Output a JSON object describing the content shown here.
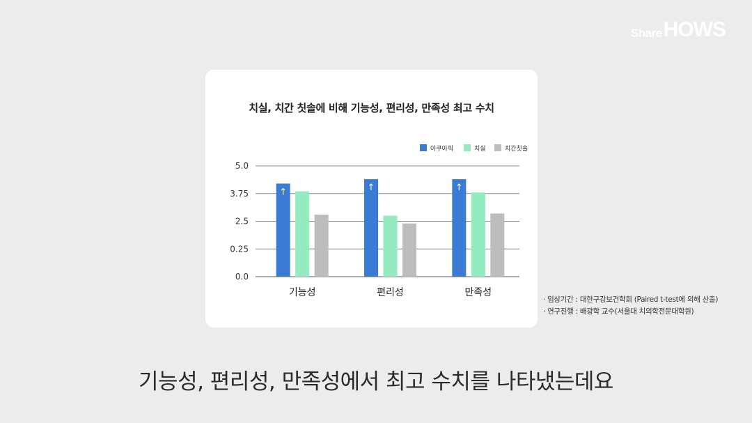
{
  "brand": {
    "share": "Share",
    "hows": "HOWS"
  },
  "chart_data": {
    "type": "bar",
    "title": "치실, 치간 칫솔에 비해 기능성, 편리성, 만족성 최고 수치",
    "categories": [
      "기능성",
      "편리성",
      "만족성"
    ],
    "series": [
      {
        "name": "아쿠아픽",
        "color": "#3a7bd5",
        "values": [
          4.2,
          4.4,
          4.4
        ]
      },
      {
        "name": "치실",
        "color": "#93ebbf",
        "values": [
          3.85,
          2.75,
          3.8
        ]
      },
      {
        "name": "치간칫솔",
        "color": "#bdbdbd",
        "values": [
          2.8,
          2.4,
          2.85
        ]
      }
    ],
    "y_ticks": [
      "5.0",
      "3.75",
      "2.5",
      "0.25",
      "0.0"
    ],
    "ylim": [
      0,
      5
    ],
    "legend_position": "top-right",
    "grid": true,
    "highlight_series": "아쿠아픽",
    "highlight_symbol": "↑"
  },
  "notes": [
    "· 임상기간 : 대한구강보건학회 (Paired t-test에 의해 산출)",
    "· 연구진행 : 배광학 교수(서울대 치의학전문대학원)"
  ],
  "caption": "기능성, 편리성, 만족성에서 최고 수치를 나타냈는데요"
}
